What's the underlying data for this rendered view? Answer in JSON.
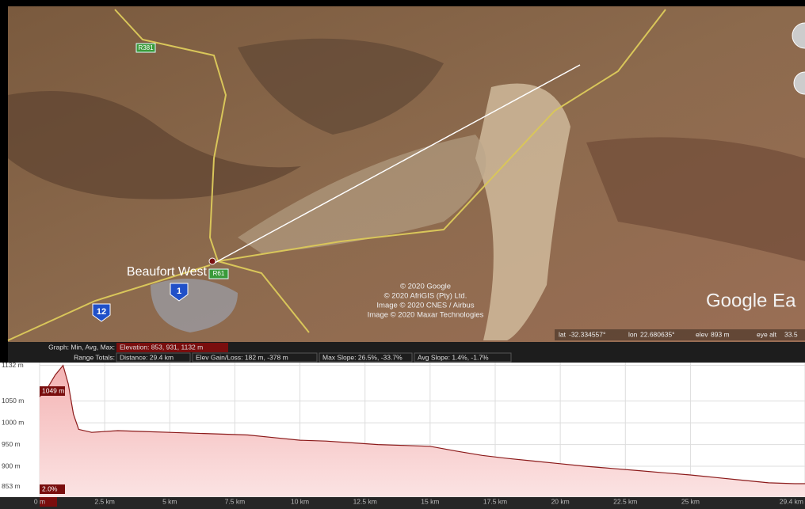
{
  "map": {
    "road_labels": [
      "R381",
      "R61"
    ],
    "route_shields": [
      "1",
      "12"
    ],
    "town": "Beaufort West",
    "attribution": [
      "© 2020 Google",
      "© 2020 AfriGIS (Pty) Ltd.",
      "Image © 2020 CNES / Airbus",
      "Image © 2020 Maxar Technologies"
    ],
    "logo": "Google Ea",
    "status": [
      "lat",
      "-32.334557°",
      "lon",
      "22.680635°",
      "elev",
      "893 m",
      "eye alt",
      "33.5"
    ]
  },
  "profile_header": {
    "graph_label": "Graph: Min, Avg, Max:",
    "elevation": "Elevation: 853, 931, 1132 m",
    "range_label": "Range Totals:",
    "distance": "Distance: 29.4 km",
    "gain_loss": "Elev Gain/Loss: 182 m, -378 m",
    "max_slope": "Max Slope: 26.5%, -33.7%",
    "avg_slope": "Avg Slope: 1.4%, -1.7%"
  },
  "chart_data": {
    "type": "area",
    "color": "#8b1a1a",
    "x": [
      0,
      0.3,
      0.6,
      0.9,
      1.1,
      1.3,
      1.5,
      2,
      3,
      4,
      5,
      6,
      7,
      8,
      9,
      10,
      11,
      12,
      13,
      14,
      15,
      16,
      17,
      18,
      19,
      20,
      21,
      22,
      23,
      24,
      25,
      26,
      27,
      28,
      29,
      29.4
    ],
    "values": [
      1060,
      1080,
      1110,
      1132,
      1090,
      1020,
      985,
      978,
      982,
      980,
      978,
      976,
      974,
      972,
      966,
      960,
      958,
      954,
      950,
      948,
      946,
      935,
      925,
      918,
      912,
      906,
      900,
      895,
      890,
      885,
      880,
      874,
      868,
      862,
      860,
      860
    ],
    "xlim": [
      0,
      29.4
    ],
    "ylim": [
      840,
      1135
    ],
    "xticks": [
      {
        "value": 0,
        "label": "0 m"
      },
      {
        "value": 2.5,
        "label": "2.5 km"
      },
      {
        "value": 5,
        "label": "5 km"
      },
      {
        "value": 7.5,
        "label": "7.5 km"
      },
      {
        "value": 10,
        "label": "10 km"
      },
      {
        "value": 12.5,
        "label": "12.5 km"
      },
      {
        "value": 15,
        "label": "15 km"
      },
      {
        "value": 17.5,
        "label": "17.5 km"
      },
      {
        "value": 20,
        "label": "20 km"
      },
      {
        "value": 22.5,
        "label": "22.5 km"
      },
      {
        "value": 25,
        "label": "25 km"
      },
      {
        "value": 29.4,
        "label": "29.4 km"
      }
    ],
    "yticks": [
      {
        "value": 1132,
        "label": "1132 m"
      },
      {
        "value": 1050,
        "label": "1050 m"
      },
      {
        "value": 1000,
        "label": "1000 m"
      },
      {
        "value": 950,
        "label": "950 m"
      },
      {
        "value": 900,
        "label": "900 m"
      },
      {
        "value": 853,
        "label": "853 m"
      }
    ],
    "annotations": [
      "1049 m",
      "2.0%"
    ],
    "grid": true
  }
}
